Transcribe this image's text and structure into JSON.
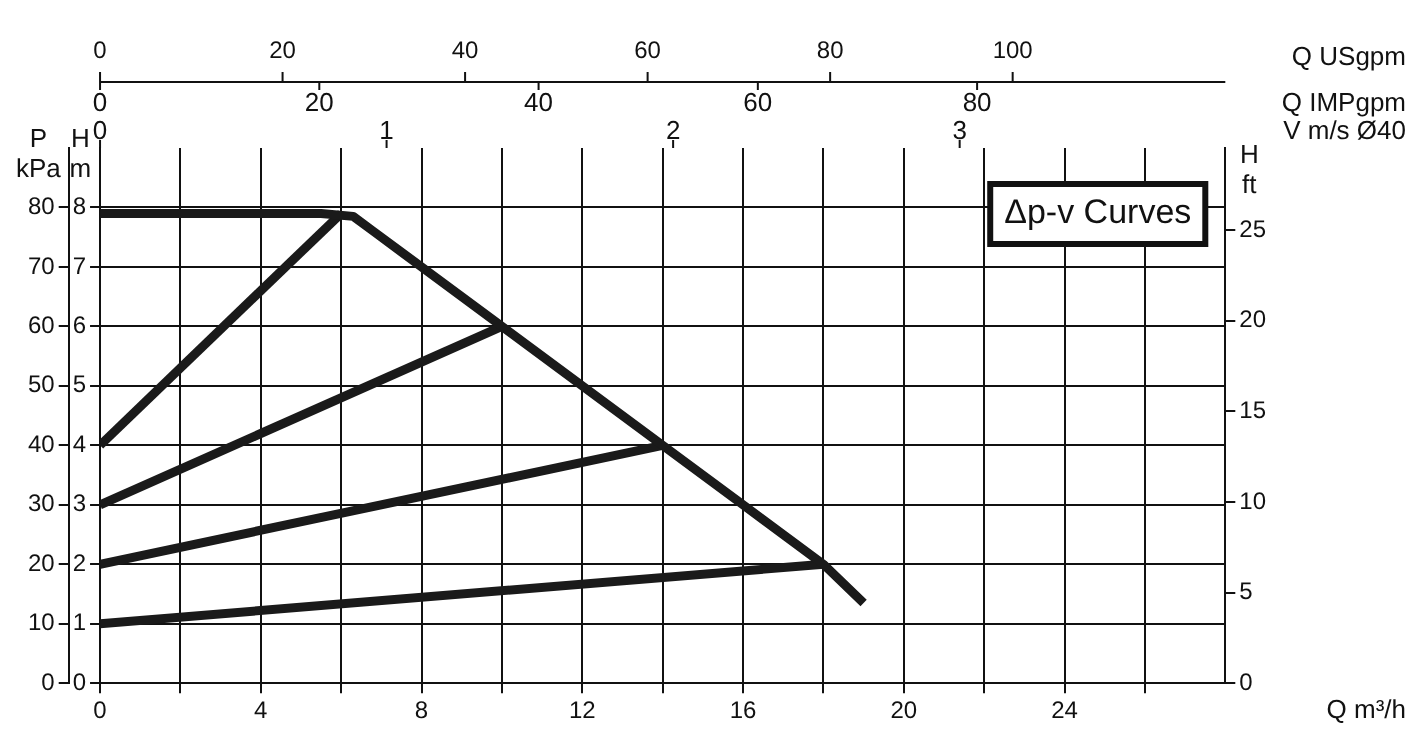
{
  "chart_data": {
    "type": "line",
    "title": "Δp-v Curves",
    "xlabel": "Q m³/h",
    "ylabel": "H m",
    "y2label": "H ft",
    "y3label": "P kPa",
    "x2label": "Q USgpm",
    "xlim": [
      0,
      28
    ],
    "xticks": [
      0,
      {
        "value": 2,
        "label": null
      },
      4,
      {
        "value": 6,
        "label": null
      },
      8,
      {
        "value": 10,
        "label": null
      },
      12,
      {
        "value": 14,
        "label": null
      },
      16,
      {
        "value": 18,
        "label": null
      },
      20,
      {
        "value": 22,
        "label": null
      },
      24,
      {
        "value": 26,
        "label": null
      }
    ],
    "ylim": [
      0,
      9
    ],
    "yticks": [
      0,
      1,
      2,
      3,
      4,
      5,
      6,
      7,
      8
    ],
    "y2lim": [
      0,
      29.53
    ],
    "y2ticks": [
      0,
      5,
      10,
      15,
      20,
      25
    ],
    "y3lim": [
      0,
      90
    ],
    "y3ticks": [
      0,
      10,
      20,
      30,
      40,
      50,
      60,
      70,
      80
    ],
    "x2lim": [
      0,
      123.3
    ],
    "x2ticks": [
      0,
      20,
      40,
      60,
      80,
      100
    ],
    "annotations": [
      "Q IMPgpm",
      "0",
      "20",
      "40",
      "60",
      "80",
      "V m/s Ø40",
      "0",
      "1",
      "2",
      "3"
    ],
    "grid": true,
    "line_style": "solid",
    "series": [
      {
        "color": "#1a1a1a",
        "x": [
          0,
          5.5,
          6.3,
          6.8,
          10,
          14,
          18,
          19
        ],
        "values": [
          7.9,
          7.9,
          7.85,
          7.6,
          6,
          4,
          2,
          1.35
        ]
      },
      {
        "color": "#1a1a1a",
        "x": [
          0,
          6
        ],
        "values": [
          4,
          7.9
        ]
      },
      {
        "color": "#1a1a1a",
        "x": [
          0,
          10
        ],
        "values": [
          3,
          6
        ]
      },
      {
        "color": "#1a1a1a",
        "x": [
          0,
          14
        ],
        "values": [
          2,
          4
        ]
      },
      {
        "color": "#1a1a1a",
        "x": [
          0,
          18
        ],
        "values": [
          1,
          2
        ]
      }
    ]
  }
}
